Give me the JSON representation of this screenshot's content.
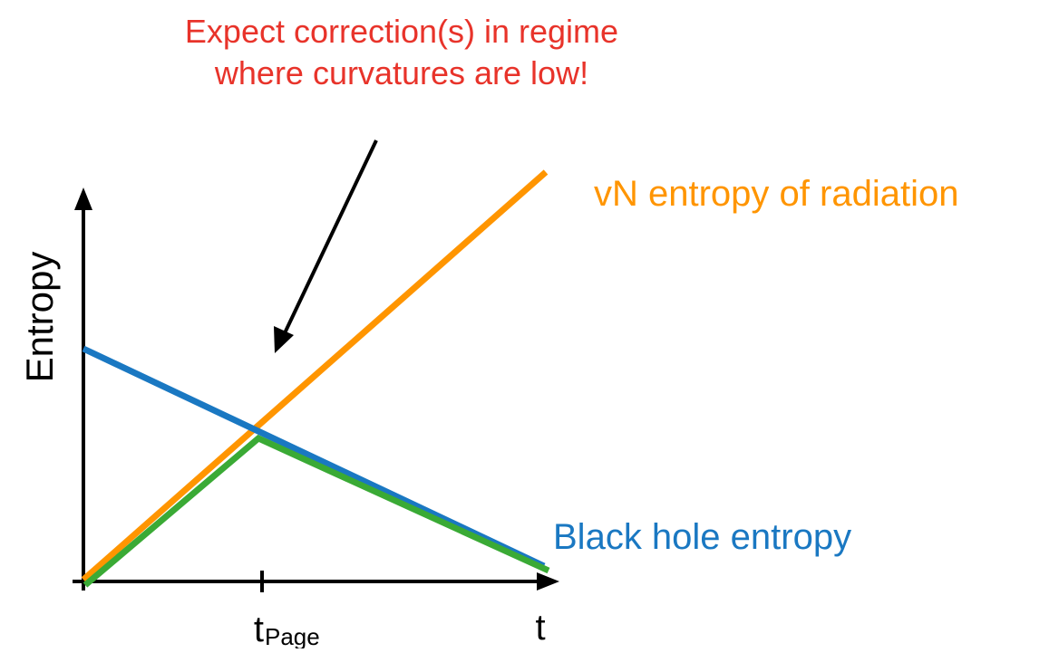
{
  "annotation": {
    "lines": [
      "Expect correction(s) in regime",
      "where curvatures are low!"
    ]
  },
  "curves": {
    "radiation": "vN entropy of radiation",
    "black_hole": "Black hole entropy"
  },
  "axes": {
    "y_label": "Entropy",
    "x_label": "t",
    "x_tick": {
      "base": "t",
      "subscript": "Page"
    }
  }
}
